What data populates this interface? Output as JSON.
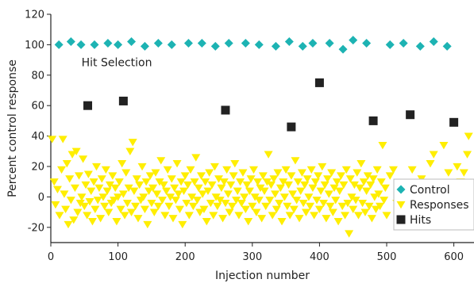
{
  "chart_data": {
    "type": "scatter",
    "title": "",
    "xlabel": "Injection number",
    "ylabel": "Percent control response",
    "xlim": [
      0,
      630
    ],
    "ylim": [
      -30,
      120
    ],
    "xticks": [
      0,
      100,
      200,
      300,
      400,
      500,
      600
    ],
    "yticks": [
      -20,
      0,
      20,
      40,
      60,
      80,
      100,
      120
    ],
    "grid": false,
    "legend_position": "lower-right",
    "annotations": [
      {
        "text": "Hit Selection",
        "x": 100,
        "y": 86
      }
    ],
    "series": [
      {
        "name": "Control",
        "marker": "diamond",
        "color": "#1db3b3",
        "points": [
          [
            12,
            100
          ],
          [
            30,
            102
          ],
          [
            45,
            100
          ],
          [
            65,
            100
          ],
          [
            85,
            101
          ],
          [
            100,
            100
          ],
          [
            120,
            102
          ],
          [
            140,
            99
          ],
          [
            160,
            101
          ],
          [
            180,
            100
          ],
          [
            205,
            101
          ],
          [
            225,
            101
          ],
          [
            245,
            99
          ],
          [
            265,
            101
          ],
          [
            290,
            101
          ],
          [
            310,
            100
          ],
          [
            335,
            99
          ],
          [
            355,
            102
          ],
          [
            375,
            99
          ],
          [
            390,
            101
          ],
          [
            415,
            101
          ],
          [
            435,
            97
          ],
          [
            450,
            103
          ],
          [
            470,
            101
          ],
          [
            505,
            100
          ],
          [
            525,
            101
          ],
          [
            550,
            99
          ],
          [
            570,
            102
          ],
          [
            590,
            99
          ]
        ]
      },
      {
        "name": "Responses",
        "marker": "triangle-down",
        "color": "#ffee00",
        "points": [
          [
            2,
            38
          ],
          [
            5,
            10
          ],
          [
            7,
            -5
          ],
          [
            10,
            5
          ],
          [
            13,
            -12
          ],
          [
            16,
            18
          ],
          [
            18,
            38
          ],
          [
            20,
            2
          ],
          [
            22,
            -8
          ],
          [
            24,
            22
          ],
          [
            26,
            -18
          ],
          [
            28,
            12
          ],
          [
            30,
            -2
          ],
          [
            32,
            28
          ],
          [
            34,
            -15
          ],
          [
            36,
            6
          ],
          [
            38,
            30
          ],
          [
            40,
            -10
          ],
          [
            42,
            14
          ],
          [
            44,
            -4
          ],
          [
            46,
            0
          ],
          [
            48,
            25
          ],
          [
            50,
            -6
          ],
          [
            52,
            8
          ],
          [
            54,
            -12
          ],
          [
            56,
            15
          ],
          [
            58,
            -3
          ],
          [
            60,
            4
          ],
          [
            62,
            -16
          ],
          [
            64,
            10
          ],
          [
            66,
            -8
          ],
          [
            68,
            20
          ],
          [
            70,
            -2
          ],
          [
            72,
            6
          ],
          [
            74,
            -14
          ],
          [
            76,
            12
          ],
          [
            78,
            0
          ],
          [
            80,
            -6
          ],
          [
            82,
            18
          ],
          [
            84,
            4
          ],
          [
            86,
            -10
          ],
          [
            88,
            8
          ],
          [
            90,
            -4
          ],
          [
            92,
            14
          ],
          [
            94,
            -2
          ],
          [
            96,
            6
          ],
          [
            98,
            -16
          ],
          [
            100,
            0
          ],
          [
            102,
            10
          ],
          [
            104,
            -8
          ],
          [
            106,
            22
          ],
          [
            108,
            2
          ],
          [
            110,
            -12
          ],
          [
            112,
            16
          ],
          [
            114,
            -4
          ],
          [
            116,
            6
          ],
          [
            118,
            30
          ],
          [
            120,
            -10
          ],
          [
            122,
            36
          ],
          [
            124,
            4
          ],
          [
            126,
            -6
          ],
          [
            128,
            12
          ],
          [
            130,
            -14
          ],
          [
            132,
            8
          ],
          [
            134,
            -2
          ],
          [
            136,
            20
          ],
          [
            138,
            0
          ],
          [
            140,
            -8
          ],
          [
            142,
            10
          ],
          [
            144,
            -18
          ],
          [
            146,
            4
          ],
          [
            148,
            14
          ],
          [
            150,
            -4
          ],
          [
            152,
            6
          ],
          [
            154,
            -10
          ],
          [
            156,
            16
          ],
          [
            158,
            2
          ],
          [
            160,
            -6
          ],
          [
            162,
            10
          ],
          [
            164,
            24
          ],
          [
            166,
            -2
          ],
          [
            168,
            8
          ],
          [
            170,
            -12
          ],
          [
            172,
            4
          ],
          [
            174,
            18
          ],
          [
            176,
            -6
          ],
          [
            178,
            0
          ],
          [
            180,
            12
          ],
          [
            182,
            -14
          ],
          [
            184,
            6
          ],
          [
            186,
            -2
          ],
          [
            188,
            22
          ],
          [
            190,
            2
          ],
          [
            192,
            -8
          ],
          [
            194,
            10
          ],
          [
            196,
            -18
          ],
          [
            198,
            4
          ],
          [
            200,
            14
          ],
          [
            202,
            -4
          ],
          [
            204,
            8
          ],
          [
            206,
            -12
          ],
          [
            208,
            18
          ],
          [
            210,
            0
          ],
          [
            212,
            -6
          ],
          [
            214,
            10
          ],
          [
            216,
            26
          ],
          [
            218,
            -2
          ],
          [
            220,
            6
          ],
          [
            222,
            -10
          ],
          [
            224,
            14
          ],
          [
            226,
            2
          ],
          [
            228,
            -8
          ],
          [
            230,
            10
          ],
          [
            232,
            -16
          ],
          [
            234,
            4
          ],
          [
            236,
            16
          ],
          [
            238,
            -4
          ],
          [
            240,
            8
          ],
          [
            242,
            -12
          ],
          [
            244,
            20
          ],
          [
            246,
            0
          ],
          [
            248,
            -6
          ],
          [
            250,
            12
          ],
          [
            252,
            -2
          ],
          [
            254,
            6
          ],
          [
            256,
            -14
          ],
          [
            258,
            10
          ],
          [
            260,
            -4
          ],
          [
            262,
            18
          ],
          [
            264,
            2
          ],
          [
            266,
            -10
          ],
          [
            268,
            8
          ],
          [
            270,
            -6
          ],
          [
            272,
            14
          ],
          [
            274,
            22
          ],
          [
            276,
            -2
          ],
          [
            278,
            4
          ],
          [
            280,
            -12
          ],
          [
            282,
            10
          ],
          [
            284,
            -4
          ],
          [
            286,
            16
          ],
          [
            288,
            0
          ],
          [
            290,
            -8
          ],
          [
            292,
            8
          ],
          [
            294,
            -16
          ],
          [
            296,
            4
          ],
          [
            298,
            12
          ],
          [
            300,
            -6
          ],
          [
            302,
            18
          ],
          [
            304,
            0
          ],
          [
            306,
            -10
          ],
          [
            308,
            10
          ],
          [
            310,
            -2
          ],
          [
            312,
            6
          ],
          [
            314,
            -14
          ],
          [
            316,
            14
          ],
          [
            318,
            4
          ],
          [
            320,
            -6
          ],
          [
            322,
            10
          ],
          [
            324,
            28
          ],
          [
            326,
            -2
          ],
          [
            328,
            8
          ],
          [
            330,
            -12
          ],
          [
            332,
            12
          ],
          [
            334,
            2
          ],
          [
            336,
            -8
          ],
          [
            338,
            16
          ],
          [
            340,
            -4
          ],
          [
            342,
            6
          ],
          [
            344,
            -16
          ],
          [
            346,
            10
          ],
          [
            348,
            0
          ],
          [
            350,
            18
          ],
          [
            352,
            -6
          ],
          [
            354,
            8
          ],
          [
            356,
            -12
          ],
          [
            358,
            14
          ],
          [
            360,
            2
          ],
          [
            362,
            -8
          ],
          [
            364,
            24
          ],
          [
            366,
            -2
          ],
          [
            368,
            10
          ],
          [
            370,
            -14
          ],
          [
            372,
            4
          ],
          [
            374,
            16
          ],
          [
            376,
            -4
          ],
          [
            378,
            8
          ],
          [
            380,
            -10
          ],
          [
            382,
            12
          ],
          [
            384,
            0
          ],
          [
            386,
            -6
          ],
          [
            388,
            18
          ],
          [
            390,
            6
          ],
          [
            392,
            -12
          ],
          [
            394,
            10
          ],
          [
            396,
            -2
          ],
          [
            398,
            14
          ],
          [
            400,
            -8
          ],
          [
            402,
            4
          ],
          [
            404,
            20
          ],
          [
            406,
            -4
          ],
          [
            408,
            8
          ],
          [
            410,
            -14
          ],
          [
            412,
            12
          ],
          [
            414,
            2
          ],
          [
            416,
            -6
          ],
          [
            418,
            16
          ],
          [
            420,
            -10
          ],
          [
            422,
            6
          ],
          [
            424,
            -2
          ],
          [
            426,
            10
          ],
          [
            428,
            -16
          ],
          [
            430,
            4
          ],
          [
            432,
            14
          ],
          [
            434,
            -6
          ],
          [
            436,
            8
          ],
          [
            438,
            -12
          ],
          [
            440,
            18
          ],
          [
            442,
            -4
          ],
          [
            444,
            -24
          ],
          [
            446,
            12
          ],
          [
            448,
            0
          ],
          [
            450,
            -8
          ],
          [
            452,
            8
          ],
          [
            454,
            -2
          ],
          [
            456,
            16
          ],
          [
            458,
            -12
          ],
          [
            460,
            6
          ],
          [
            462,
            22
          ],
          [
            464,
            -4
          ],
          [
            466,
            10
          ],
          [
            468,
            -10
          ],
          [
            470,
            4
          ],
          [
            472,
            14
          ],
          [
            474,
            -6
          ],
          [
            476,
            8
          ],
          [
            478,
            -14
          ],
          [
            480,
            12
          ],
          [
            482,
            0
          ],
          [
            484,
            -8
          ],
          [
            486,
            18
          ],
          [
            488,
            2
          ],
          [
            490,
            -6
          ],
          [
            492,
            10
          ],
          [
            494,
            34
          ],
          [
            496,
            -2
          ],
          [
            498,
            6
          ],
          [
            500,
            -12
          ],
          [
            505,
            14
          ],
          [
            510,
            18
          ],
          [
            515,
            -4
          ],
          [
            520,
            8
          ],
          [
            525,
            -10
          ],
          [
            530,
            6
          ],
          [
            538,
            18
          ],
          [
            545,
            2
          ],
          [
            552,
            12
          ],
          [
            558,
            -4
          ],
          [
            565,
            22
          ],
          [
            570,
            28
          ],
          [
            575,
            8
          ],
          [
            580,
            -6
          ],
          [
            585,
            34
          ],
          [
            592,
            16
          ],
          [
            600,
            -2
          ],
          [
            605,
            20
          ],
          [
            610,
            10
          ],
          [
            615,
            16
          ],
          [
            620,
            28
          ],
          [
            622,
            40
          ]
        ]
      },
      {
        "name": "Hits",
        "marker": "square",
        "color": "#222222",
        "points": [
          [
            55,
            60
          ],
          [
            108,
            63
          ],
          [
            260,
            57
          ],
          [
            358,
            46
          ],
          [
            400,
            75
          ],
          [
            480,
            50
          ],
          [
            535,
            54
          ],
          [
            600,
            49
          ]
        ]
      }
    ]
  }
}
